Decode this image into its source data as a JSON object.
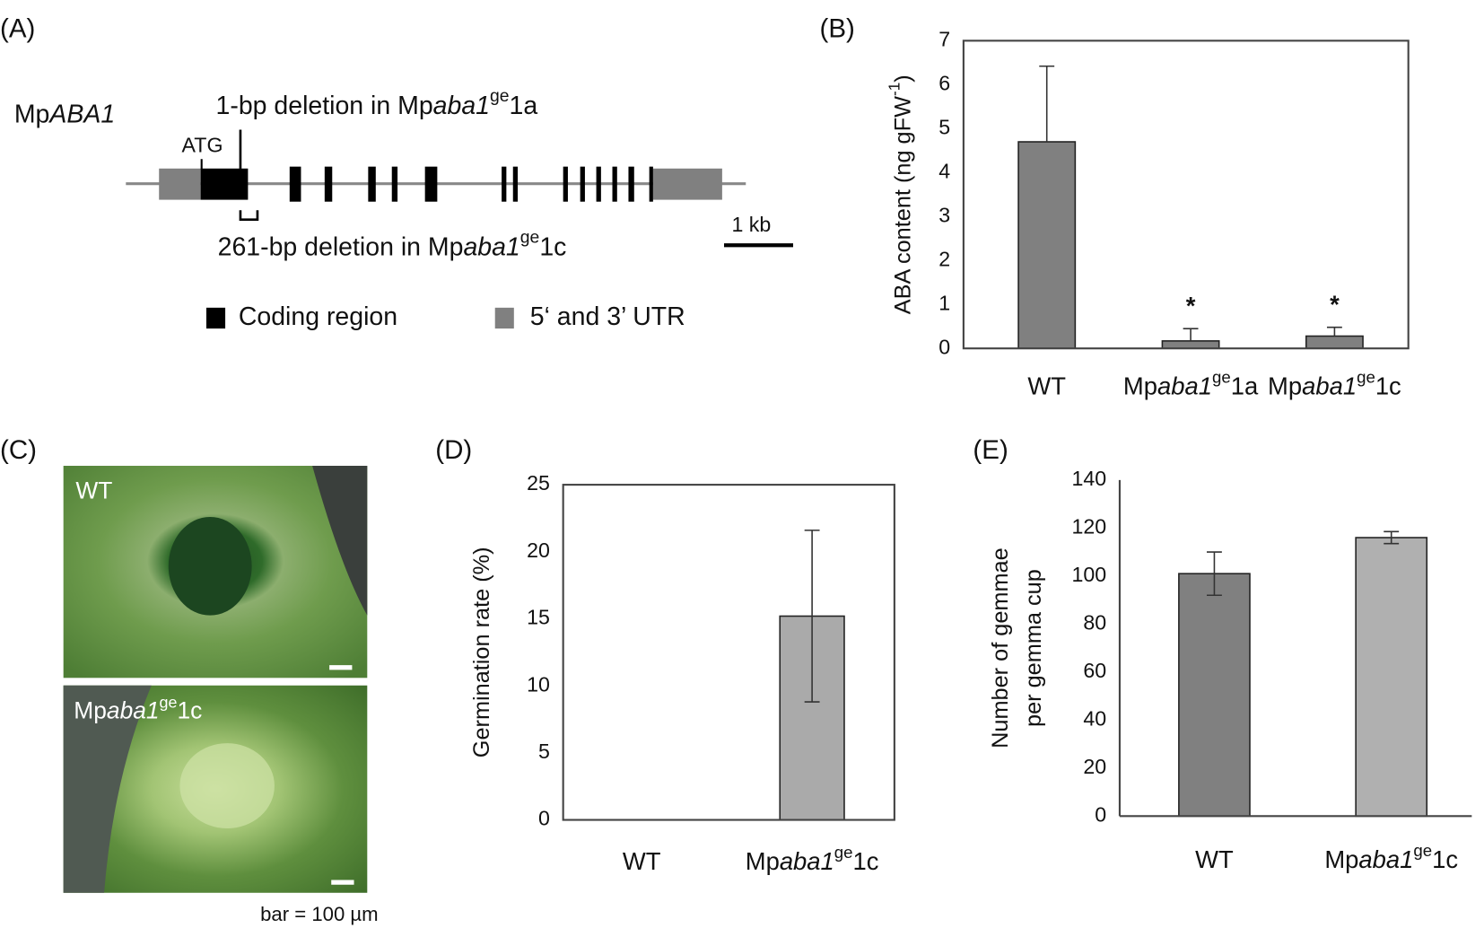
{
  "panel_labels": [
    "(A)",
    "(B)",
    "(C)",
    "(D)",
    "(E)"
  ],
  "gene_diagram": {
    "gene_name": [
      {
        "text": "Mp"
      },
      {
        "text": "ABA1",
        "style": "italic"
      }
    ],
    "start_codon": "ATG",
    "deletion_1a": [
      {
        "text": "1-bp deletion in Mp"
      },
      {
        "text": "aba1",
        "style": "italic"
      },
      {
        "text": "ge",
        "style": "sup"
      },
      {
        "text": "1a"
      }
    ],
    "deletion_1c": [
      {
        "text": "261-bp deletion in Mp"
      },
      {
        "text": "aba1",
        "style": "italic"
      },
      {
        "text": "ge",
        "style": "sup"
      },
      {
        "text": "1c"
      }
    ],
    "scale_label": "1 kb",
    "legend": [
      "Coding region",
      "5‘ and 3’ UTR"
    ]
  },
  "photos": {
    "labels": [
      [
        {
          "text": "WT"
        }
      ],
      [
        {
          "text": "Mp"
        },
        {
          "text": "aba1",
          "style": "italic"
        },
        {
          "text": "ge",
          "style": "sup"
        },
        {
          "text": "1c"
        }
      ]
    ],
    "scale_note": "bar = 100 µm"
  },
  "chart_data": [
    {
      "type": "bar",
      "ylabel": [
        [
          {
            "text": "ABA content (ng gFW"
          },
          {
            "text": "-1",
            "style": "sup"
          },
          {
            "text": ")"
          }
        ]
      ],
      "categories": [
        [
          {
            "text": "WT"
          }
        ],
        [
          {
            "text": "Mp"
          },
          {
            "text": "aba1",
            "style": "italic"
          },
          {
            "text": "ge",
            "style": "sup"
          },
          {
            "text": "1a"
          }
        ],
        [
          {
            "text": "Mp"
          },
          {
            "text": "aba1",
            "style": "italic"
          },
          {
            "text": "ge",
            "style": "sup"
          },
          {
            "text": "1c"
          }
        ]
      ],
      "values": [
        4.7,
        0.17,
        0.28
      ],
      "errors": [
        1.72,
        0.28,
        0.2
      ],
      "error_bars": "upper",
      "annotations": [
        null,
        "*",
        "*"
      ],
      "colors": [
        "#808080",
        "#808080",
        "#808080"
      ],
      "ylim": [
        0,
        7
      ],
      "yticks": [
        0,
        1,
        2,
        3,
        4,
        5,
        6,
        7
      ],
      "frame": "box"
    },
    {
      "type": "bar",
      "ylabel": [
        [
          {
            "text": "Germination rate (%)"
          }
        ]
      ],
      "categories": [
        [
          {
            "text": "WT"
          }
        ],
        [
          {
            "text": "Mp"
          },
          {
            "text": "aba1",
            "style": "italic"
          },
          {
            "text": "ge",
            "style": "sup"
          },
          {
            "text": "1c"
          }
        ]
      ],
      "values": [
        0,
        15.2
      ],
      "errors": [
        null,
        6.4
      ],
      "error_bars": "both",
      "colors": [
        "#aaaaaa",
        "#aaaaaa"
      ],
      "ylim": [
        0,
        25
      ],
      "yticks": [
        0,
        5,
        10,
        15,
        20,
        25
      ],
      "frame": "box"
    },
    {
      "type": "bar",
      "ylabel": [
        [
          {
            "text": "Number of gemmae"
          }
        ],
        [
          {
            "text": "per gemma cup"
          }
        ]
      ],
      "categories": [
        [
          {
            "text": "WT"
          }
        ],
        [
          {
            "text": "Mp"
          },
          {
            "text": "aba1",
            "style": "italic"
          },
          {
            "text": "ge",
            "style": "sup"
          },
          {
            "text": "1c"
          }
        ]
      ],
      "values": [
        101,
        116
      ],
      "errors": [
        9,
        2.5
      ],
      "error_bars": "both",
      "colors": [
        "#808080",
        "#b0b0b0"
      ],
      "ylim": [
        0,
        140
      ],
      "yticks": [
        0,
        20,
        40,
        60,
        80,
        100,
        120,
        140
      ],
      "frame": "axes"
    }
  ]
}
